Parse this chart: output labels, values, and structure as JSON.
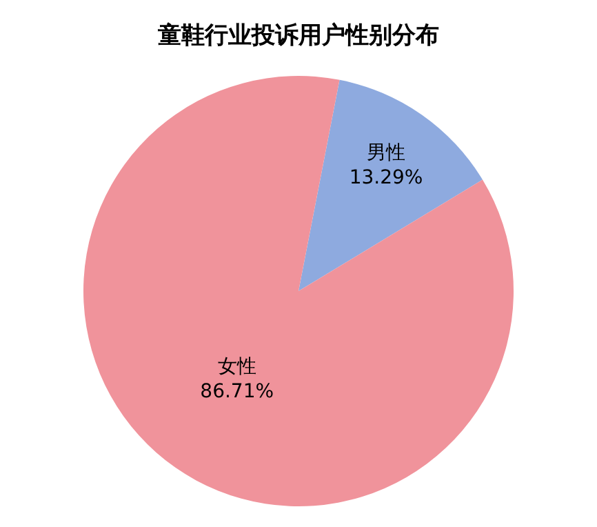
{
  "chart_data": {
    "type": "pie",
    "title": "童鞋行业投诉用户性别分布",
    "categories": [
      "男性",
      "女性"
    ],
    "values": [
      13.29,
      86.71
    ],
    "colors": [
      "#8eaadf",
      "#f0939b"
    ],
    "value_labels": [
      "13.29%",
      "86.71%"
    ],
    "legend": false
  }
}
